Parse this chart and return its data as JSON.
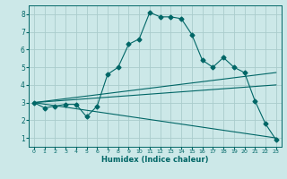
{
  "xlabel": "Humidex (Indice chaleur)",
  "bg_color": "#cce8e8",
  "grid_color": "#aacccc",
  "line_color": "#006666",
  "xlim": [
    -0.5,
    23.5
  ],
  "ylim": [
    0.5,
    8.5
  ],
  "xticks": [
    0,
    1,
    2,
    3,
    4,
    5,
    6,
    7,
    8,
    9,
    10,
    11,
    12,
    13,
    14,
    15,
    16,
    17,
    18,
    19,
    20,
    21,
    22,
    23
  ],
  "yticks": [
    1,
    2,
    3,
    4,
    5,
    6,
    7,
    8
  ],
  "line1_x": [
    0,
    1,
    2,
    3,
    4,
    5,
    6,
    7,
    8,
    9,
    10,
    11,
    12,
    13,
    14,
    15,
    16,
    17,
    18,
    19,
    20,
    21,
    22,
    23
  ],
  "line1_y": [
    3.0,
    2.7,
    2.8,
    2.9,
    2.9,
    2.2,
    2.8,
    4.6,
    5.0,
    6.3,
    6.6,
    8.1,
    7.85,
    7.85,
    7.75,
    6.85,
    5.4,
    5.0,
    5.55,
    5.0,
    4.7,
    3.1,
    1.8,
    0.9
  ],
  "line1_markers_x": [
    0,
    1,
    2,
    3,
    4,
    5,
    6,
    7,
    8,
    9,
    10,
    11,
    12,
    13,
    14,
    15,
    16,
    17,
    18,
    19,
    20,
    21,
    22,
    23
  ],
  "line1_markers_y": [
    3.0,
    2.7,
    2.8,
    2.9,
    2.9,
    2.2,
    2.8,
    4.6,
    5.0,
    6.3,
    6.6,
    8.1,
    7.85,
    7.85,
    7.75,
    6.85,
    5.4,
    5.0,
    5.55,
    5.0,
    4.7,
    3.1,
    1.8,
    0.9
  ],
  "line2_x": [
    0,
    23
  ],
  "line2_y": [
    3.0,
    4.7
  ],
  "line3_x": [
    0,
    23
  ],
  "line3_y": [
    3.0,
    4.0
  ],
  "line4_x": [
    0,
    23
  ],
  "line4_y": [
    3.0,
    1.0
  ]
}
